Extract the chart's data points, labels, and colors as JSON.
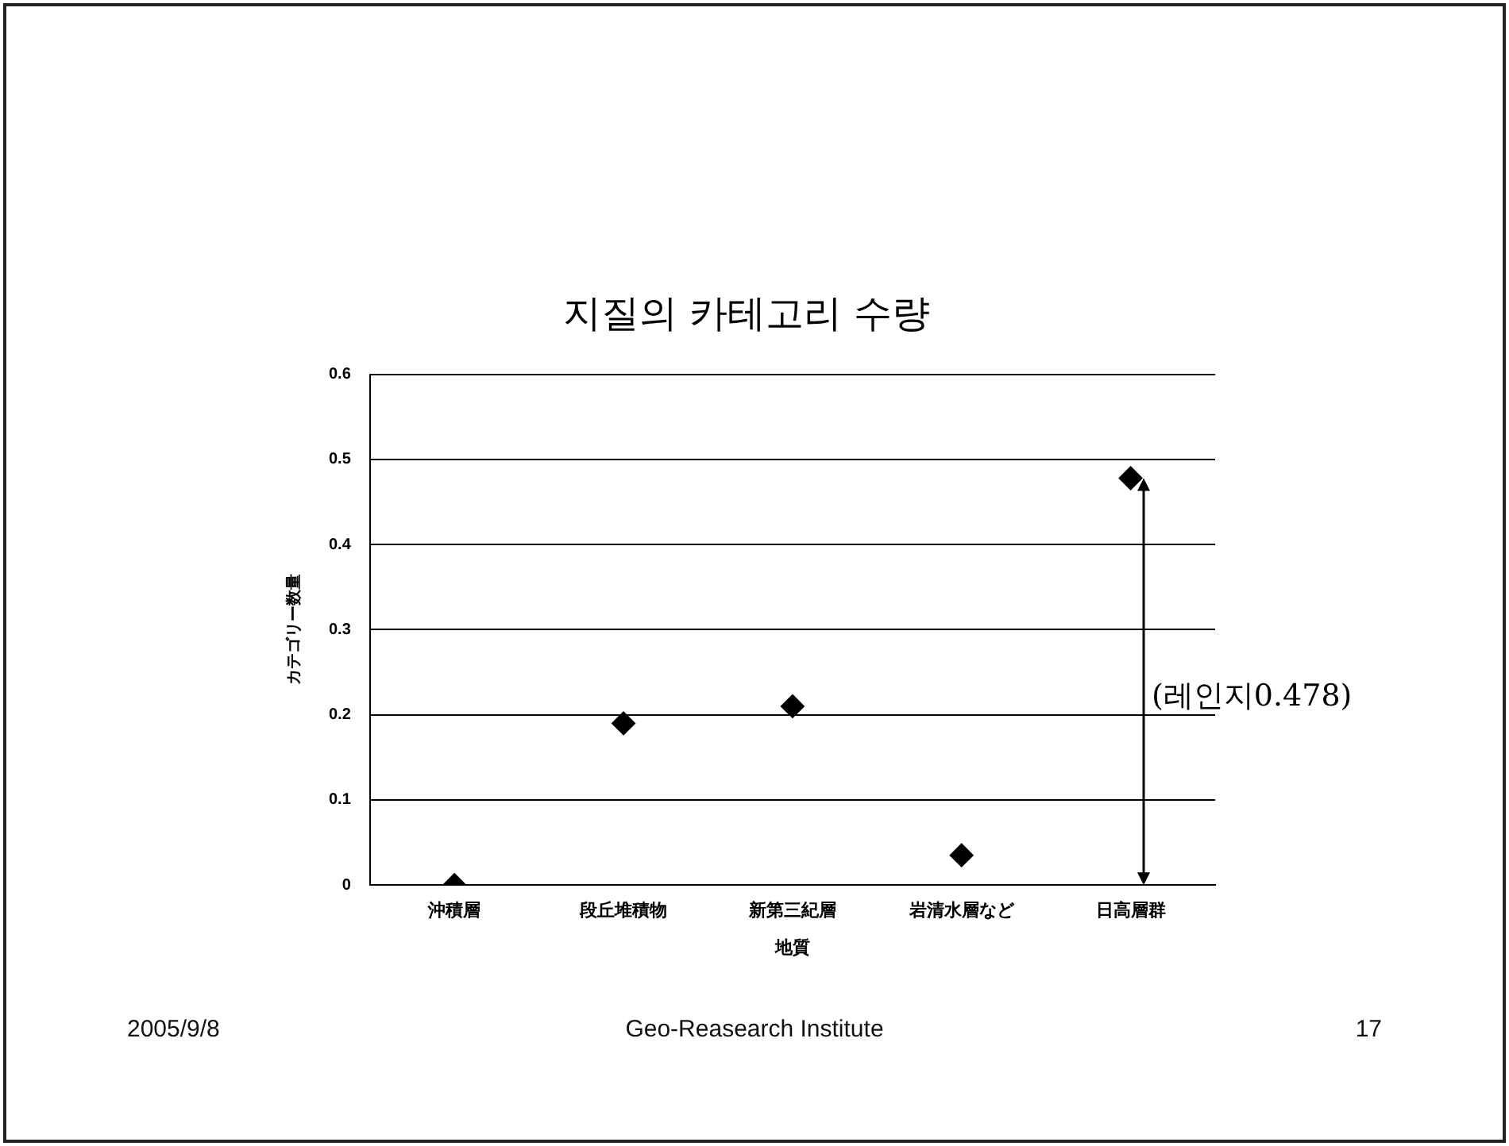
{
  "chart_data": {
    "type": "scatter",
    "title": "지질의 카테고리 수량",
    "xlabel": "地質",
    "ylabel": "カテゴリー数量",
    "categories": [
      "沖積層",
      "段丘堆積物",
      "新第三紀層",
      "岩清水層など",
      "日高層群"
    ],
    "values": [
      0,
      0.19,
      0.21,
      0.035,
      0.478
    ],
    "color": "#000000",
    "ylim": [
      0,
      0.6
    ],
    "yticks": [
      0,
      0.1,
      0.2,
      0.3,
      0.4,
      0.5,
      0.6
    ],
    "grid": "y",
    "legend": false,
    "marker": "diamond",
    "annotations": [
      "(레인지0.478)",
      "2005/9/8",
      "Geo-Reasearch Institute",
      "17"
    ]
  }
}
